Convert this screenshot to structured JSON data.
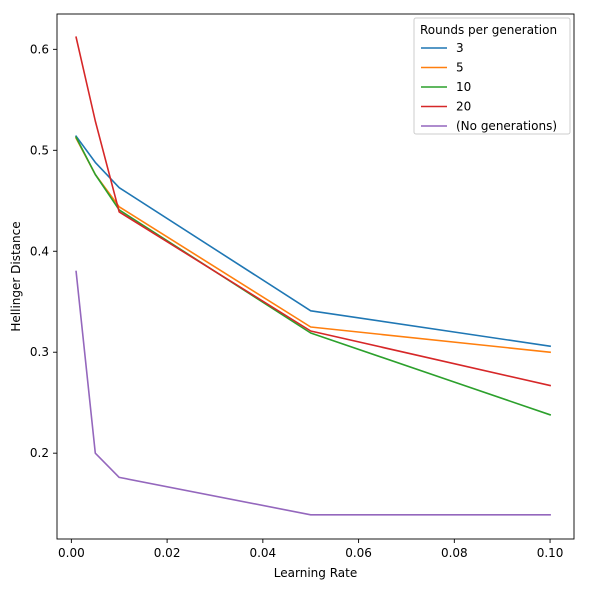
{
  "chart_data": {
    "type": "line",
    "title": "",
    "xlabel": "Learning Rate",
    "ylabel": "Hellinger Distance",
    "xlim": [
      -0.003,
      0.105
    ],
    "ylim": [
      0.115,
      0.635
    ],
    "xticks": [
      0.0,
      0.02,
      0.04,
      0.06,
      0.08,
      0.1
    ],
    "xtick_labels": [
      "0.00",
      "0.02",
      "0.04",
      "0.06",
      "0.08",
      "0.10"
    ],
    "yticks": [
      0.2,
      0.3,
      0.4,
      0.5,
      0.6
    ],
    "ytick_labels": [
      "0.2",
      "0.3",
      "0.4",
      "0.5",
      "0.6"
    ],
    "grid": false,
    "legend": {
      "title": "Rounds per generation",
      "placement": "top-right"
    },
    "series": [
      {
        "name": "3",
        "color": "#1f77b4",
        "x": [
          0.001,
          0.005,
          0.01,
          0.05,
          0.1
        ],
        "y": [
          0.514,
          0.488,
          0.463,
          0.341,
          0.306
        ]
      },
      {
        "name": "5",
        "color": "#ff7f0e",
        "x": [
          0.001,
          0.005,
          0.01,
          0.05,
          0.1
        ],
        "y": [
          0.512,
          0.476,
          0.444,
          0.325,
          0.3
        ]
      },
      {
        "name": "10",
        "color": "#2ca02c",
        "x": [
          0.001,
          0.005,
          0.01,
          0.05,
          0.1
        ],
        "y": [
          0.513,
          0.476,
          0.441,
          0.319,
          0.238
        ]
      },
      {
        "name": "20",
        "color": "#d62728",
        "x": [
          0.001,
          0.005,
          0.01,
          0.05,
          0.1
        ],
        "y": [
          0.612,
          0.529,
          0.439,
          0.321,
          0.267
        ]
      },
      {
        "name": "(No generations)",
        "color": "#9467bd",
        "x": [
          0.001,
          0.005,
          0.01,
          0.05,
          0.1
        ],
        "y": [
          0.38,
          0.2,
          0.176,
          0.139,
          0.139
        ]
      }
    ]
  }
}
